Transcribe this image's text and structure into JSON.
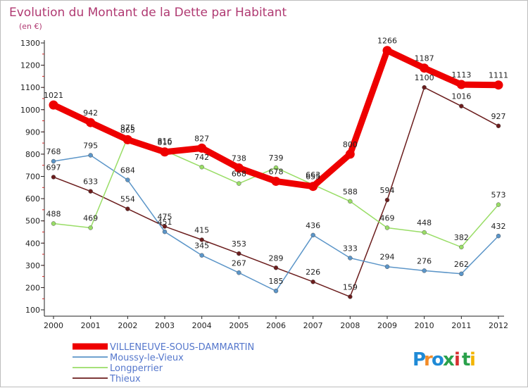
{
  "chart_data": {
    "type": "line",
    "title": "Evolution du Montant de la Dette par Habitant",
    "subtitle": "(en €)",
    "x": [
      "2000",
      "2001",
      "2002",
      "2003",
      "2004",
      "2005",
      "2006",
      "2007",
      "2008",
      "2009",
      "2010",
      "2011",
      "2012"
    ],
    "ylim": [
      100,
      1300
    ],
    "yticks": [
      100,
      200,
      300,
      400,
      500,
      600,
      700,
      800,
      900,
      1000,
      1100,
      1200,
      1300
    ],
    "grid": "none",
    "legend_position": "bottom-left",
    "series": [
      {
        "name": "VILLENEUVE-SOUS-DAMMARTIN",
        "color": "#ee0000",
        "values": [
          1021,
          942,
          865,
          810,
          827,
          738,
          678,
          655,
          800,
          1266,
          1187,
          1113,
          1111
        ]
      },
      {
        "name": "Moussy-le-Vieux",
        "color": "#5b95c8",
        "values": [
          768,
          795,
          684,
          451,
          345,
          267,
          185,
          436,
          333,
          294,
          276,
          262,
          432
        ]
      },
      {
        "name": "Longperrier",
        "color": "#99dd66",
        "values": [
          488,
          469,
          875,
          816,
          742,
          668,
          739,
          663,
          588,
          469,
          448,
          382,
          573
        ]
      },
      {
        "name": "Thieux",
        "color": "#6b1d1d",
        "values": [
          697,
          633,
          554,
          475,
          415,
          353,
          289,
          226,
          159,
          594,
          1100,
          1016,
          927
        ]
      }
    ]
  },
  "logo": {
    "letters": [
      "P",
      "r",
      "o",
      "x",
      "i",
      "t",
      "i"
    ],
    "colors": [
      "#1f8ad6",
      "#f28c28",
      "#1f8ad6",
      "#2aa14b",
      "#d62f2f",
      "#2aa14b",
      "#f2b400"
    ]
  }
}
